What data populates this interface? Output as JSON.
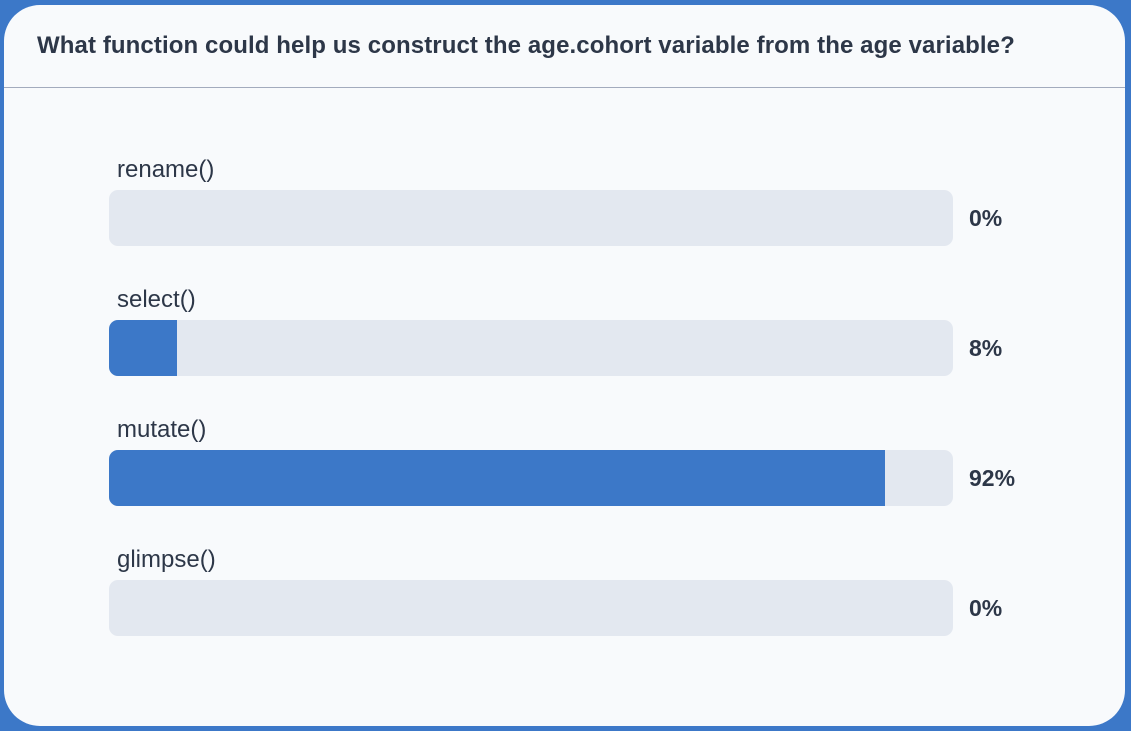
{
  "question": "What function could help us construct the age.cohort variable from the age variable?",
  "colors": {
    "accent": "#3c78c8",
    "track": "#e3e8f0",
    "text": "#2d3748"
  },
  "chart_data": {
    "type": "bar",
    "orientation": "horizontal",
    "title": "What function could help us construct the age.cohort variable from the age variable?",
    "categories": [
      "rename()",
      "select()",
      "mutate()",
      "glimpse()"
    ],
    "values": [
      0,
      8,
      92,
      0
    ],
    "value_labels": [
      "0%",
      "8%",
      "92%",
      "0%"
    ],
    "xlim": [
      0,
      100
    ],
    "grid": false
  }
}
